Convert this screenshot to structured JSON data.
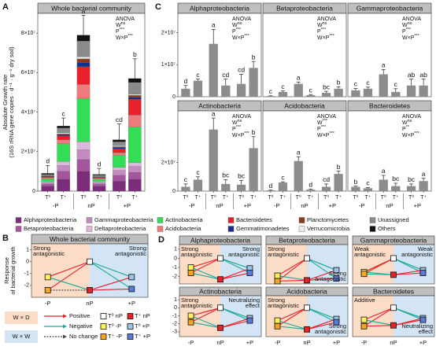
{
  "panel_labels": [
    "A",
    "B",
    "C",
    "D"
  ],
  "chart_data": [
    {
      "type": "stacked_bar",
      "title": "Whole bacterial community",
      "ylabel": [
        "Absolute Growth rate",
        "(16S rRNA gene copies · d⁻¹ · g⁻¹ dry soil)"
      ],
      "categories": [
        "T⁰",
        "T⁺",
        "T⁰",
        "T⁺",
        "T⁰",
        "T⁺"
      ],
      "groups": [
        "-P",
        "nP",
        "+P"
      ],
      "ylim": [
        0,
        90000000
      ],
      "yticks": [
        0,
        {
          "value": 20000000,
          "label": "2×10⁷"
        },
        {
          "value": 40000000,
          "label": "4×10⁷"
        },
        {
          "value": 60000000,
          "label": "6×10⁷"
        },
        {
          "value": 80000000,
          "label": "8×10⁷"
        }
      ],
      "series": [
        {
          "name": "Alphaproteobacteria",
          "color": "#7b2d7a",
          "values": [
            2500000,
            6000000,
            10000000,
            2500000,
            5000000,
            6000000
          ]
        },
        {
          "name": "Betaproteobacteria",
          "color": "#a3559e",
          "values": [
            1000000,
            4000000,
            6000000,
            1000000,
            3000000,
            3500000
          ]
        },
        {
          "name": "Gammaproteobacteria",
          "color": "#c48bc3",
          "values": [
            800000,
            3000000,
            5000000,
            800000,
            2500000,
            3000000
          ]
        },
        {
          "name": "Deltaproteobacteria",
          "color": "#dcb8da",
          "values": [
            500000,
            2000000,
            4000000,
            500000,
            1500000,
            2000000
          ]
        },
        {
          "name": "Actinobacteria",
          "color": "#33dd55",
          "values": [
            1500000,
            9000000,
            22000000,
            1200000,
            6000000,
            18000000
          ]
        },
        {
          "name": "Acidobacteria",
          "color": "#ec7c7c",
          "values": [
            500000,
            2000000,
            7000000,
            500000,
            1500000,
            6000000
          ]
        },
        {
          "name": "Bacteroidetes",
          "color": "#e8202a",
          "values": [
            400000,
            2000000,
            9000000,
            400000,
            2000000,
            8000000
          ]
        },
        {
          "name": "Gemmatimonadetes",
          "color": "#1a2d8f",
          "values": [
            200000,
            500000,
            2000000,
            200000,
            500000,
            1000000
          ]
        },
        {
          "name": "Planctomycetes",
          "color": "#8b3a1a",
          "values": [
            200000,
            500000,
            2000000,
            200000,
            500000,
            1000000
          ]
        },
        {
          "name": "Verrucomicrobia",
          "color": "#eeeeee",
          "values": [
            100000,
            500000,
            1000000,
            100000,
            500000,
            500000
          ]
        },
        {
          "name": "Unassigned",
          "color": "#8a8a8a",
          "values": [
            800000,
            2500000,
            8000000,
            700000,
            2000000,
            6000000
          ]
        },
        {
          "name": "Others",
          "color": "#111111",
          "values": [
            500000,
            1000000,
            3000000,
            400000,
            1000000,
            2000000
          ]
        }
      ],
      "errors": [
        4000000,
        4000000,
        10000000,
        3000000,
        8000000,
        10000000
      ],
      "letters": [
        "d",
        "c",
        "a",
        "d",
        "cd",
        "b"
      ],
      "anova": {
        "title": "ANOVA",
        "terms": [
          {
            "term": "W",
            "sig": "ns"
          },
          {
            "term": "P",
            "sig": "***"
          },
          {
            "term": "W×P",
            "sig": "***"
          }
        ]
      }
    },
    {
      "type": "bar",
      "title": "Alphaproteobacteria",
      "color": "#8c8c8c",
      "ylim": [
        0,
        26000000
      ],
      "yticks": [
        0,
        {
          "value": 10000000,
          "label": "1×10⁷"
        },
        {
          "value": 20000000,
          "label": "2×10⁷"
        }
      ],
      "values": [
        2500000,
        5000000,
        16500000,
        3500000,
        4000000,
        9000000
      ],
      "errors": [
        1000000,
        500000,
        4500000,
        2000000,
        3000000,
        2000000
      ],
      "letters": [
        "d",
        "c",
        "a",
        "cd",
        "cd",
        "b"
      ],
      "anova": {
        "title": "ANOVA",
        "terms": [
          {
            "term": "W",
            "sig": "ns"
          },
          {
            "term": "P",
            "sig": "***"
          },
          {
            "term": "W×P",
            "sig": "***"
          }
        ]
      }
    },
    {
      "type": "bar",
      "title": "Betaproteobacteria",
      "color": "#8c8c8c",
      "ylim": [
        0,
        26000000
      ],
      "values": [
        200000,
        1500000,
        4000000,
        500000,
        1200000,
        2500000
      ],
      "errors": [
        100000,
        300000,
        600000,
        200000,
        500000,
        600000
      ],
      "letters": [
        "c",
        "c",
        "a",
        "c",
        "bc",
        "b"
      ],
      "anova": {
        "title": "ANOVA",
        "terms": [
          {
            "term": "W",
            "sig": "ns"
          },
          {
            "term": "P",
            "sig": "***"
          },
          {
            "term": "W×P",
            "sig": "***"
          }
        ]
      }
    },
    {
      "type": "bar",
      "title": "Gammaproteobacteria",
      "color": "#8c8c8c",
      "ylim": [
        0,
        26000000
      ],
      "values": [
        2000000,
        2500000,
        7000000,
        1500000,
        3500000,
        3500000
      ],
      "errors": [
        600000,
        500000,
        1500000,
        1000000,
        2000000,
        2000000
      ],
      "letters": [
        "c",
        "c",
        "a",
        "c",
        "ab",
        "ab"
      ],
      "anova": {
        "title": "ANOVA",
        "terms": [
          {
            "term": "W",
            "sig": "ns"
          },
          {
            "term": "P",
            "sig": "***"
          },
          {
            "term": "W×P",
            "sig": "***"
          }
        ]
      }
    },
    {
      "type": "bar",
      "title": "Actinobacteria",
      "color": "#8c8c8c",
      "ylim": [
        0,
        56000000
      ],
      "yticks": [
        0,
        {
          "value": 20000000,
          "label": "2×10⁷"
        }
      ],
      "categories": [
        "T⁰",
        "T⁺",
        "T⁰",
        "T⁺",
        "T⁰",
        "T⁺"
      ],
      "groups": [
        "-P",
        "nP",
        "+P"
      ],
      "values": [
        3000000,
        8000000,
        43000000,
        5000000,
        4500000,
        30000000
      ],
      "errors": [
        2000000,
        2000000,
        8000000,
        3000000,
        3000000,
        8000000
      ],
      "letters": [
        "c",
        "c",
        "a",
        "bc",
        "bc",
        "b"
      ],
      "anova": {
        "title": "ANOVA",
        "terms": [
          {
            "term": "W",
            "sig": "ns"
          },
          {
            "term": "P",
            "sig": "***"
          },
          {
            "term": "W×P",
            "sig": "***"
          }
        ]
      }
    },
    {
      "type": "bar",
      "title": "Acidobacteria",
      "color": "#8c8c8c",
      "ylim": [
        0,
        56000000
      ],
      "categories": [
        "T⁰",
        "T⁺",
        "T⁰",
        "T⁺",
        "T⁰",
        "T⁺"
      ],
      "groups": [
        "-P",
        "nP",
        "+P"
      ],
      "values": [
        500000,
        6000000,
        21000000,
        1000000,
        3000000,
        12000000
      ],
      "errors": [
        200000,
        500000,
        3000000,
        500000,
        2000000,
        2000000
      ],
      "letters": [
        "d",
        "c",
        "a",
        "d",
        "cd",
        "b"
      ],
      "anova": {
        "title": "ANOVA",
        "terms": [
          {
            "term": "W",
            "sig": "***"
          },
          {
            "term": "P",
            "sig": "***"
          },
          {
            "term": "W×P",
            "sig": "***"
          }
        ]
      }
    },
    {
      "type": "bar",
      "title": "Bacteroidetes",
      "color": "#8c8c8c",
      "ylim": [
        0,
        56000000
      ],
      "categories": [
        "T⁰",
        "T⁺",
        "T⁰",
        "T⁺",
        "T⁰",
        "T⁺"
      ],
      "groups": [
        "-P",
        "nP",
        "+P"
      ],
      "values": [
        3000000,
        2000000,
        8000000,
        3500000,
        3500000,
        7000000
      ],
      "errors": [
        500000,
        500000,
        3000000,
        2000000,
        1500000,
        2000000
      ],
      "letters": [
        "b",
        "c",
        "a",
        "bc",
        "bc",
        "a"
      ],
      "anova": {
        "title": "ANOVA",
        "terms": [
          {
            "term": "W",
            "sig": "ns"
          },
          {
            "term": "P",
            "sig": "**"
          },
          {
            "term": "W×P",
            "sig": "***"
          }
        ]
      }
    }
  ],
  "diagrams": {
    "ylabel": [
      "Response",
      "of bacterial growth"
    ],
    "plots": [
      {
        "title": "Whole bacterial community",
        "ylim": [
          -3,
          1.5
        ],
        "yticks": [
          1,
          0,
          -1,
          -2
        ],
        "groups": [
          "-P",
          "nP",
          "+P"
        ],
        "values": [
          0,
          -1.3,
          -2.4,
          -2.4,
          -1.3,
          -2.3
        ],
        "notes": [
          [
            "Strong",
            "antagonistic"
          ],
          [
            "Strong",
            "antagonistic"
          ]
        ]
      },
      {
        "title": "Alphaproteobacteria",
        "ylim": [
          -2.8,
          1.5
        ],
        "yticks": [
          1,
          0,
          -1,
          -2
        ],
        "values": [
          0,
          -1,
          -1.6,
          -2.3,
          -1.1,
          -1.6
        ],
        "notes": [
          [
            "Strong",
            "antagonistic"
          ],
          [
            "Strong",
            "antagonistic"
          ]
        ]
      },
      {
        "title": "Betaproteobacteria",
        "ylim": [
          -2.8,
          1.5
        ],
        "values": [
          0,
          -1.9,
          -2.5,
          -2.4,
          -1.3,
          -2.2
        ],
        "notes": [
          [
            "Strong",
            "antagonistic"
          ],
          [
            "Strong",
            "antagonistic"
          ]
        ]
      },
      {
        "title": "Gammaproteobacteria",
        "ylim": [
          -2.8,
          1.5
        ],
        "values": [
          0,
          -1.5,
          -1.7,
          -1.8,
          -1.3,
          -1.6
        ],
        "notes": [
          [
            "Weak",
            "antagonistic"
          ],
          [
            "Weak",
            "antagonistic"
          ]
        ]
      },
      {
        "title": "Actinobacteria",
        "ylim": [
          -3.6,
          1.5
        ],
        "yticks": [
          1,
          0,
          -1,
          -2,
          -3
        ],
        "groups": [
          "-P",
          "nP",
          "+P"
        ],
        "values": [
          0,
          -1,
          -1.8,
          -2.5,
          -1.3,
          -1.6
        ],
        "notes": [
          [
            "Strong",
            "antagonistic"
          ],
          [
            "Neutralizing",
            "effect"
          ]
        ]
      },
      {
        "title": "Acidobacteria",
        "ylim": [
          -3.6,
          1.5
        ],
        "groups": [
          "-P",
          "nP",
          "+P"
        ],
        "values": [
          0,
          -1.6,
          -2.3,
          -2.7,
          -1.4,
          -1.8
        ],
        "notes": [
          [
            "Strong",
            "antagonistic"
          ],
          [
            "Strong",
            "antagonistic"
          ]
        ]
      },
      {
        "title": "Bacteroidetes",
        "ylim": [
          -3.6,
          1.5
        ],
        "groups": [
          "-P",
          "nP",
          "+P"
        ],
        "values": [
          0,
          -1.5,
          -2.3,
          -2.2,
          -1.3,
          -1.5
        ],
        "notes": [
          [
            "Additive"
          ],
          [
            "Neutralizing",
            "effect"
          ]
        ]
      }
    ],
    "legend": {
      "regions": [
        {
          "name": "W × D",
          "color": "#fbdcc6"
        },
        {
          "name": "W × W",
          "color": "#d3e4f4"
        }
      ],
      "arrows": [
        {
          "name": "Positive",
          "color": "#e8202a"
        },
        {
          "name": "Negative",
          "color": "#19a89b"
        },
        {
          "name": "No change",
          "color": "#444444"
        }
      ],
      "nodes": [
        {
          "name": "T⁰ nP",
          "color": "#ffffff"
        },
        {
          "name": "T⁰ -P",
          "color": "#fff45c"
        },
        {
          "name": "T⁺ -P",
          "color": "#f6a623"
        },
        {
          "name": "T⁺ nP",
          "color": "#e8202a"
        },
        {
          "name": "T⁰ +P",
          "color": "#9dc3e6"
        },
        {
          "name": "T⁺ +P",
          "color": "#5b7bd5"
        }
      ]
    }
  }
}
